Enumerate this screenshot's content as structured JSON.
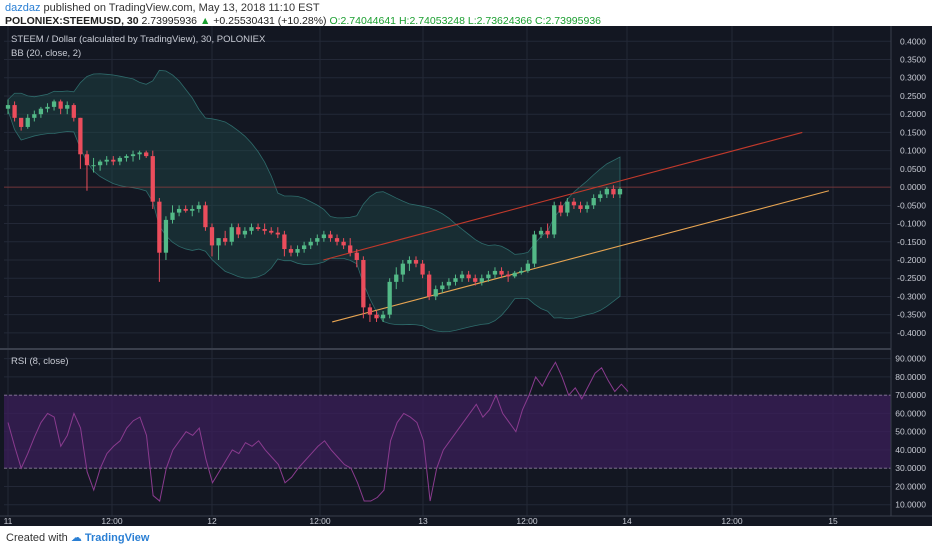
{
  "header": {
    "publisher": "dazdaz",
    "publish_text": "published on TradingView.com, May 13, 2018 11:10 EST",
    "symbol": "POLONIEX:STEEMUSD, 30",
    "last": "2.73995936",
    "change": "+0.25530431 (+10.28%)",
    "o_label": "O:",
    "o": "2.74044641",
    "h_label": "H:",
    "h": "2.74053248",
    "l_label": "L:",
    "l": "2.73624366",
    "c_label": "C:",
    "c": "2.73995936"
  },
  "legend": {
    "main": "STEEM / Dollar (calculated by TradingView), 30, POLONIEX",
    "bb": "BB (20, close, 2)",
    "rsi": "RSI (8, close)"
  },
  "footer": {
    "created_with": "Created with",
    "brand": "TradingView"
  },
  "colors": {
    "background": "#131722",
    "up": "#53b987",
    "down": "#eb4d5c",
    "bb_fill": "#1e4a4a",
    "rsi_band": "#3b1f5a",
    "rsi_line": "#8a3b8f",
    "trend_red": "#c0392b",
    "trend_orange": "#e8a552"
  },
  "chart_data": [
    {
      "type": "candlestick",
      "title": "STEEM / Dollar (calculated by TradingView), 30, POLONIEX",
      "x_ticks": [
        "11",
        "12:00",
        "12",
        "12:00",
        "13",
        "12:00",
        "14",
        "12:00",
        "15"
      ],
      "y_ticks": [
        "0.4000",
        "0.3500",
        "0.3000",
        "0.2500",
        "0.2000",
        "0.1500",
        "0.1000",
        "0.0500",
        "0.0000",
        "-0.0500",
        "-0.1000",
        "-0.1500",
        "-0.2000",
        "-0.2500",
        "-0.3000",
        "-0.3500",
        "-0.4000"
      ],
      "ylim": [
        -0.425,
        0.42
      ],
      "grid": true,
      "last_price": 0.0,
      "candles": [
        [
          0.215,
          0.24,
          0.2,
          0.225
        ],
        [
          0.225,
          0.235,
          0.18,
          0.19
        ],
        [
          0.19,
          0.185,
          0.155,
          0.165
        ],
        [
          0.165,
          0.2,
          0.16,
          0.19
        ],
        [
          0.19,
          0.21,
          0.18,
          0.2
        ],
        [
          0.2,
          0.22,
          0.19,
          0.215
        ],
        [
          0.215,
          0.23,
          0.205,
          0.22
        ],
        [
          0.22,
          0.24,
          0.21,
          0.235
        ],
        [
          0.235,
          0.24,
          0.2,
          0.215
        ],
        [
          0.215,
          0.235,
          0.2,
          0.225
        ],
        [
          0.225,
          0.23,
          0.18,
          0.19
        ],
        [
          0.19,
          0.19,
          0.05,
          0.09
        ],
        [
          0.09,
          0.1,
          -0.01,
          0.06
        ],
        [
          0.06,
          0.08,
          0.04,
          0.06
        ],
        [
          0.06,
          0.075,
          0.045,
          0.07
        ],
        [
          0.07,
          0.085,
          0.06,
          0.075
        ],
        [
          0.075,
          0.085,
          0.06,
          0.07
        ],
        [
          0.07,
          0.085,
          0.06,
          0.08
        ],
        [
          0.08,
          0.09,
          0.07,
          0.085
        ],
        [
          0.085,
          0.1,
          0.07,
          0.09
        ],
        [
          0.09,
          0.1,
          0.075,
          0.095
        ],
        [
          0.095,
          0.1,
          0.08,
          0.085
        ],
        [
          0.085,
          0.1,
          -0.06,
          -0.04
        ],
        [
          -0.04,
          -0.03,
          -0.26,
          -0.18
        ],
        [
          -0.18,
          -0.08,
          -0.2,
          -0.09
        ],
        [
          -0.09,
          -0.05,
          -0.1,
          -0.07
        ],
        [
          -0.07,
          -0.05,
          -0.08,
          -0.06
        ],
        [
          -0.06,
          -0.05,
          -0.07,
          -0.065
        ],
        [
          -0.065,
          -0.05,
          -0.08,
          -0.06
        ],
        [
          -0.06,
          -0.04,
          -0.07,
          -0.05
        ],
        [
          -0.05,
          -0.04,
          -0.12,
          -0.11
        ],
        [
          -0.11,
          -0.1,
          -0.19,
          -0.16
        ],
        [
          -0.16,
          -0.14,
          -0.2,
          -0.14
        ],
        [
          -0.14,
          -0.12,
          -0.16,
          -0.15
        ],
        [
          -0.15,
          -0.1,
          -0.16,
          -0.11
        ],
        [
          -0.11,
          -0.1,
          -0.14,
          -0.13
        ],
        [
          -0.13,
          -0.11,
          -0.14,
          -0.12
        ],
        [
          -0.12,
          -0.1,
          -0.13,
          -0.11
        ],
        [
          -0.11,
          -0.1,
          -0.12,
          -0.115
        ],
        [
          -0.115,
          -0.1,
          -0.13,
          -0.12
        ],
        [
          -0.12,
          -0.11,
          -0.13,
          -0.125
        ],
        [
          -0.125,
          -0.11,
          -0.14,
          -0.13
        ],
        [
          -0.13,
          -0.12,
          -0.19,
          -0.17
        ],
        [
          -0.17,
          -0.16,
          -0.19,
          -0.18
        ],
        [
          -0.18,
          -0.16,
          -0.19,
          -0.17
        ],
        [
          -0.17,
          -0.15,
          -0.18,
          -0.16
        ],
        [
          -0.16,
          -0.14,
          -0.17,
          -0.15
        ],
        [
          -0.15,
          -0.13,
          -0.16,
          -0.14
        ],
        [
          -0.14,
          -0.12,
          -0.15,
          -0.13
        ],
        [
          -0.13,
          -0.12,
          -0.15,
          -0.14
        ],
        [
          -0.14,
          -0.13,
          -0.16,
          -0.15
        ],
        [
          -0.15,
          -0.14,
          -0.17,
          -0.16
        ],
        [
          -0.16,
          -0.14,
          -0.19,
          -0.18
        ],
        [
          -0.18,
          -0.17,
          -0.22,
          -0.2
        ],
        [
          -0.2,
          -0.19,
          -0.36,
          -0.33
        ],
        [
          -0.33,
          -0.32,
          -0.37,
          -0.35
        ],
        [
          -0.35,
          -0.34,
          -0.37,
          -0.36
        ],
        [
          -0.36,
          -0.34,
          -0.37,
          -0.35
        ],
        [
          -0.35,
          -0.25,
          -0.36,
          -0.26
        ],
        [
          -0.26,
          -0.22,
          -0.28,
          -0.24
        ],
        [
          -0.24,
          -0.2,
          -0.26,
          -0.21
        ],
        [
          -0.21,
          -0.19,
          -0.23,
          -0.2
        ],
        [
          -0.2,
          -0.19,
          -0.22,
          -0.21
        ],
        [
          -0.21,
          -0.2,
          -0.25,
          -0.24
        ],
        [
          -0.24,
          -0.23,
          -0.31,
          -0.3
        ],
        [
          -0.3,
          -0.27,
          -0.31,
          -0.28
        ],
        [
          -0.28,
          -0.26,
          -0.29,
          -0.27
        ],
        [
          -0.27,
          -0.25,
          -0.28,
          -0.26
        ],
        [
          -0.26,
          -0.24,
          -0.27,
          -0.25
        ],
        [
          -0.25,
          -0.23,
          -0.26,
          -0.24
        ],
        [
          -0.24,
          -0.23,
          -0.26,
          -0.25
        ],
        [
          -0.25,
          -0.24,
          -0.27,
          -0.26
        ],
        [
          -0.26,
          -0.24,
          -0.27,
          -0.25
        ],
        [
          -0.25,
          -0.23,
          -0.26,
          -0.24
        ],
        [
          -0.24,
          -0.22,
          -0.25,
          -0.23
        ],
        [
          -0.23,
          -0.22,
          -0.25,
          -0.24
        ],
        [
          -0.24,
          -0.23,
          -0.26,
          -0.245
        ],
        [
          -0.245,
          -0.23,
          -0.25,
          -0.235
        ],
        [
          -0.235,
          -0.22,
          -0.24,
          -0.23
        ],
        [
          -0.23,
          -0.2,
          -0.235,
          -0.21
        ],
        [
          -0.21,
          -0.12,
          -0.22,
          -0.13
        ],
        [
          -0.13,
          -0.11,
          -0.14,
          -0.12
        ],
        [
          -0.12,
          -0.1,
          -0.14,
          -0.13
        ],
        [
          -0.13,
          -0.04,
          -0.14,
          -0.05
        ],
        [
          -0.05,
          -0.04,
          -0.08,
          -0.07
        ],
        [
          -0.07,
          -0.03,
          -0.08,
          -0.04
        ],
        [
          -0.04,
          -0.03,
          -0.06,
          -0.05
        ],
        [
          -0.05,
          -0.04,
          -0.07,
          -0.06
        ],
        [
          -0.06,
          -0.04,
          -0.07,
          -0.05
        ],
        [
          -0.05,
          -0.02,
          -0.06,
          -0.03
        ],
        [
          -0.03,
          -0.01,
          -0.04,
          -0.02
        ],
        [
          -0.02,
          0.0,
          -0.03,
          -0.005
        ],
        [
          -0.005,
          0.005,
          -0.03,
          -0.02
        ],
        [
          -0.02,
          0.0,
          -0.03,
          -0.005
        ]
      ],
      "trendlines": [
        {
          "color": "red",
          "from": [
            0.36,
            -0.2
          ],
          "to": [
            0.9,
            0.15
          ]
        },
        {
          "color": "orange",
          "from": [
            0.37,
            -0.37
          ],
          "to": [
            0.93,
            -0.01
          ]
        }
      ]
    },
    {
      "type": "line",
      "title": "RSI (8, close)",
      "y_ticks": [
        "90.0000",
        "80.0000",
        "70.0000",
        "60.0000",
        "50.0000",
        "40.0000",
        "30.0000",
        "20.0000",
        "10.0000"
      ],
      "ylim": [
        6,
        92
      ],
      "band": [
        30,
        70
      ],
      "values": [
        55,
        42,
        30,
        38,
        47,
        55,
        60,
        58,
        42,
        48,
        60,
        52,
        28,
        18,
        30,
        38,
        42,
        45,
        52,
        56,
        58,
        48,
        15,
        12,
        30,
        40,
        45,
        50,
        48,
        52,
        35,
        22,
        28,
        34,
        40,
        38,
        44,
        42,
        45,
        40,
        36,
        32,
        22,
        25,
        30,
        34,
        38,
        42,
        45,
        40,
        36,
        32,
        30,
        22,
        12,
        12,
        14,
        18,
        45,
        55,
        60,
        58,
        55,
        45,
        12,
        30,
        40,
        45,
        50,
        55,
        60,
        65,
        58,
        62,
        70,
        60,
        55,
        50,
        62,
        70,
        80,
        75,
        82,
        88,
        80,
        70,
        74,
        68,
        75,
        82,
        85,
        78,
        72,
        76,
        72
      ]
    }
  ]
}
